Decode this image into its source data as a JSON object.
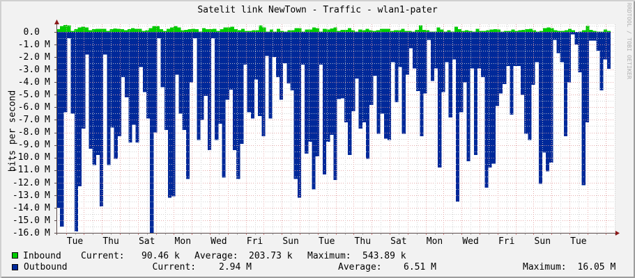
{
  "title": "Satelit link NewTown - Traffic - wlan1-pater",
  "watermark": "RRDTOOL / TOBI OETIKER",
  "legend": {
    "rows": [
      {
        "name": "Inbound",
        "color": "#00cc00",
        "current_label": "Current:",
        "current": "90.46 k",
        "average_label": "Average:",
        "average": "203.73 k",
        "maximum_label": "Maximum:",
        "maximum": "543.89 k"
      },
      {
        "name": "Outbound",
        "color": "#00299a",
        "current_label": "Current:",
        "current": "2.94 M",
        "average_label": "Average:",
        "average": "6.51 M",
        "maximum_label": "Maximum:",
        "maximum": "16.05 M"
      }
    ]
  },
  "chart_data": {
    "type": "area",
    "title": "Satelit link NewTown - Traffic - wlan1-pater",
    "xlabel": "",
    "ylabel": "bits per second",
    "y_unit": "Mbit/s",
    "ylim": [
      -16.0,
      0.55
    ],
    "grid": true,
    "legend_position": "bottom",
    "y_tick_labels": [
      "0.0",
      "-1.0 M",
      "-2.0 M",
      "-3.0 M",
      "-4.0 M",
      "-5.0 M",
      "-6.0 M",
      "-7.0 M",
      "-8.0 M",
      "-9.0 M",
      "-10.0 M",
      "-11.0 M",
      "-12.0 M",
      "-13.0 M",
      "-14.0 M",
      "-15.0 M",
      "-16.0 M"
    ],
    "x_tick_labels": [
      "Tue",
      "Thu",
      "Sat",
      "Mon",
      "Wed",
      "Fri",
      "Sun",
      "Tue",
      "Thu",
      "Sat",
      "Mon",
      "Wed",
      "Fri",
      "Sun",
      "Tue"
    ],
    "series": [
      {
        "name": "Inbound",
        "color": "#00cc00",
        "values": [
          0.221,
          0.461,
          0.544,
          0.52,
          0.092,
          0.221,
          0.351,
          0.406,
          0.351,
          0.129,
          0.221,
          0.258,
          0.258,
          0.258,
          0.092,
          0.221,
          0.28,
          0.258,
          0.221,
          0.129,
          0.221,
          0.314,
          0.258,
          0.258,
          0.092,
          0.129,
          0.314,
          0.461,
          0.461,
          0.221,
          0.092,
          0.258,
          0.351,
          0.461,
          0.351,
          0.129,
          0.166,
          0.221,
          0.258,
          0.221,
          0.04,
          0.314,
          0.221,
          0.221,
          0.258,
          0.092,
          0.221,
          0.351,
          0.351,
          0.406,
          0.221,
          0.129,
          0.258,
          0.092,
          0.092,
          0.129,
          0.129,
          0.536,
          0.351,
          0.037,
          0.184,
          0.037,
          0.258,
          0.092,
          0.037,
          0.129,
          0.129,
          0.314,
          0.314,
          0.037,
          0.203,
          0.203,
          0.369,
          0.314,
          0.037,
          0.258,
          0.203,
          0.277,
          0.369,
          0.092,
          0.166,
          0.166,
          0.314,
          0.129,
          0.037,
          0.184,
          0.129,
          0.258,
          0.129,
          0.092,
          0.129,
          0.258,
          0.258,
          0.258,
          0.092,
          0.129,
          0.129,
          0.258,
          0.092,
          0.092,
          0.037,
          0.166,
          0.536,
          0.166,
          0.129,
          0.037,
          0.037,
          0.369,
          0.184,
          0.037,
          0.129,
          0.037,
          0.406,
          0.221,
          0.092,
          0.129,
          0.092,
          0.037,
          0.258,
          0.092,
          0.092,
          0.129,
          0.184,
          0.221,
          0.184,
          0.037,
          0.092,
          0.092,
          0.184,
          0.092,
          0.129,
          0.166,
          0.221,
          0.258,
          0.129,
          0.037,
          0.092,
          0.314,
          0.351,
          0.314,
          0.129,
          0.092,
          0.092,
          0.129,
          0.258,
          0.129,
          0.01,
          0.037,
          0.129,
          0.498,
          0.166,
          0.092,
          0.037,
          0.037,
          0.184,
          0.09
        ]
      },
      {
        "name": "Outbound",
        "color": "#00299a",
        "values": [
          -14.0,
          -15.5,
          -6.4,
          -0.5,
          -6.5,
          -15.9,
          -12.3,
          -7.7,
          -1.8,
          -9.3,
          -10.6,
          -9.8,
          -13.9,
          -1.8,
          -10.6,
          -7.6,
          -10.1,
          -8.3,
          -3.6,
          -5.2,
          -8.8,
          -7.4,
          -8.8,
          -2.8,
          -4.8,
          -6.9,
          -16.05,
          -8.0,
          -0.5,
          -4.4,
          -7.8,
          -13.2,
          -13.1,
          -3.4,
          -6.5,
          -7.8,
          -11.7,
          -4.0,
          -0.5,
          -8.6,
          -7.0,
          -5.1,
          -9.4,
          -0.5,
          -8.6,
          -7.3,
          -11.6,
          -5.4,
          -4.6,
          -9.4,
          -11.7,
          -8.9,
          -2.6,
          -6.4,
          -6.9,
          -3.8,
          -6.7,
          -8.3,
          -1.9,
          -6.9,
          -2.0,
          -3.6,
          -5.4,
          -2.5,
          -4.1,
          -4.65,
          -11.7,
          -13.2,
          -2.6,
          -9.7,
          -8.75,
          -12.55,
          -9.9,
          -2.6,
          -11.35,
          -8.75,
          -8.2,
          -11.8,
          -5.35,
          -5.3,
          -7.2,
          -9.8,
          -6.3,
          -3.7,
          -7.7,
          -7.2,
          -10.1,
          -5.8,
          -3.5,
          -8.1,
          -6.5,
          -8.5,
          -8.6,
          -2.4,
          -5.6,
          -2.8,
          -8.1,
          -3.4,
          -1.3,
          -2.9,
          -4.7,
          -8.3,
          -4.9,
          -0.65,
          -3.9,
          -2.9,
          -10.8,
          -4.8,
          -2.4,
          -6.8,
          -2.2,
          -13.5,
          -6.4,
          -4.0,
          -10.3,
          -2.9,
          -9.8,
          -2.9,
          -3.6,
          -12.4,
          -10.8,
          -10.5,
          -5.9,
          -4.9,
          -4.15,
          -2.7,
          -6.6,
          -2.7,
          -2.7,
          -5.0,
          -8.1,
          -8.6,
          -4.2,
          -2.4,
          -12.1,
          -9.6,
          -11.1,
          -10.4,
          -0.65,
          -1.7,
          -2.4,
          -8.3,
          -4.0,
          -0.2,
          -1.0,
          -3.2,
          -12.2,
          -7.2,
          -0.7,
          -0.7,
          -1.5,
          -4.65,
          -2.2,
          -2.94
        ]
      }
    ]
  }
}
